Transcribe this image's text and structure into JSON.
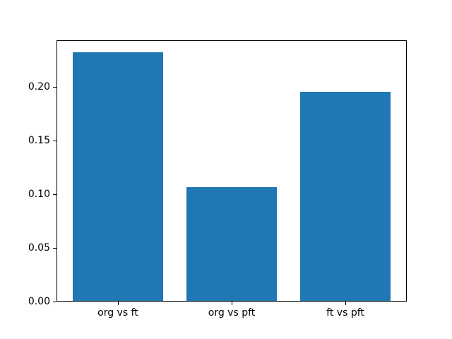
{
  "chart_data": {
    "type": "bar",
    "title": "",
    "xlabel": "",
    "ylabel": "",
    "categories": [
      "org vs ft",
      "org vs pft",
      "ft vs pft"
    ],
    "values": [
      0.232,
      0.106,
      0.195
    ],
    "bar_width_fraction": 0.8,
    "xlim": [
      -0.54,
      2.54
    ],
    "ylim": [
      0,
      0.2436
    ],
    "yticks": [
      0.0,
      0.05,
      0.1,
      0.15,
      0.2
    ],
    "ytick_labels": [
      "0.00",
      "0.05",
      "0.10",
      "0.15",
      "0.20"
    ],
    "grid": false,
    "legend": "none",
    "bar_color": "#1f77b4",
    "axis_color": "#000000",
    "text_color": "#000000",
    "background_color": "#ffffff"
  }
}
